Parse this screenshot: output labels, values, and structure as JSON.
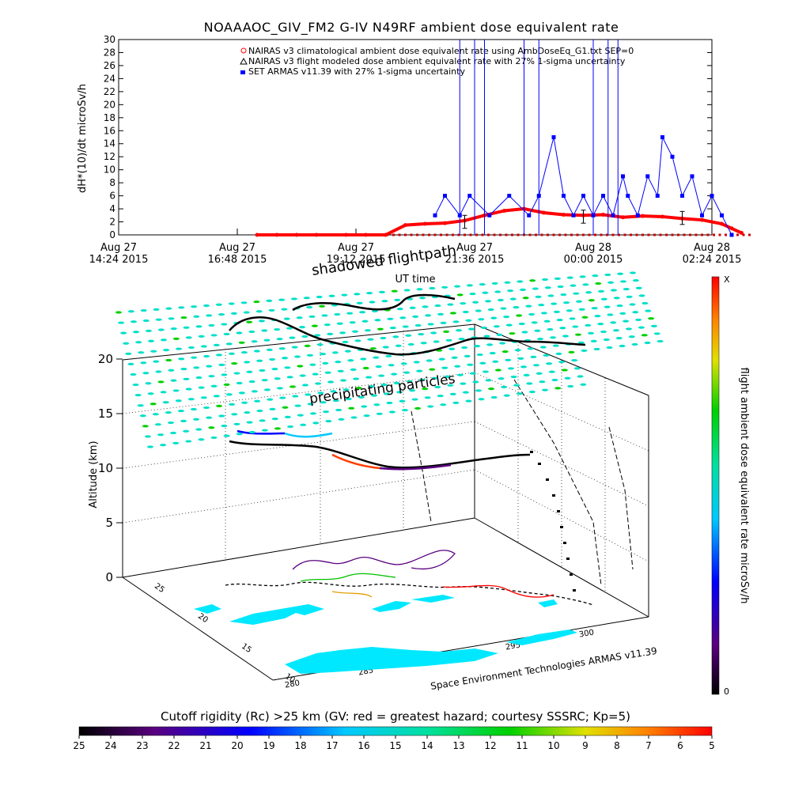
{
  "title": "NOAAAOC_GIV_FM2 G-IV    N49RF   ambient dose equivalent rate",
  "chart_data": [
    {
      "type": "line",
      "ylabel": "dH*(10)/dt microSv/h",
      "xlabel": "UT time",
      "ylim": [
        0,
        30
      ],
      "yticks": [
        "0",
        "2",
        "4",
        "6",
        "8",
        "10",
        "12",
        "14",
        "16",
        "18",
        "20",
        "22",
        "24",
        "26",
        "28",
        "30"
      ],
      "xticks": [
        {
          "l1": "Aug 27",
          "l2": "14:24 2015"
        },
        {
          "l1": "Aug 27",
          "l2": "16:48 2015"
        },
        {
          "l1": "Aug 27",
          "l2": "19:12 2015"
        },
        {
          "l1": "Aug 27",
          "l2": "21:36 2015"
        },
        {
          "l1": "Aug 28",
          "l2": "00:00 2015"
        },
        {
          "l1": "Aug 28",
          "l2": "02:24 2015"
        }
      ],
      "legend": [
        "NAIRAS v3 climatological ambient dose equivalent rate using AmbDoseEq_G1.txt SEP=0",
        "NAIRAS v3 flight modeled dose ambient equivalent rate with 27% 1-sigma uncertainty",
        "SET ARMAS v11.39 with 27% 1-sigma uncertainty"
      ],
      "legend_placement": "top-right",
      "series": [
        {
          "name": "NAIRAS v3 climatological ambient dose equivalent rate using AmbDoseEq_G1.txt SEP=0",
          "color": "#ff0000",
          "x_hours": [
            2.8,
            3.2,
            3.6,
            4.0,
            4.6,
            5.0,
            5.4,
            5.8,
            6.2,
            6.6,
            7.0,
            7.4,
            7.8,
            8.2,
            8.6,
            9.0,
            9.4,
            9.8,
            10.2,
            10.6,
            11.0,
            11.4,
            11.8,
            12.2,
            12.4,
            12.6
          ],
          "values": [
            0,
            0,
            0,
            0,
            0,
            0,
            0,
            1.5,
            1.7,
            1.8,
            2.2,
            3.0,
            3.7,
            4.0,
            3.4,
            3.1,
            3.0,
            3.1,
            2.7,
            2.9,
            2.8,
            2.5,
            2.3,
            1.7,
            1.0,
            0.3
          ]
        },
        {
          "name": "SET ARMAS v11.39 with 27% 1-sigma uncertainty",
          "color": "#0000ff",
          "x_hours": [
            6.4,
            6.6,
            6.9,
            7.1,
            7.5,
            7.9,
            8.3,
            8.5,
            8.8,
            9.0,
            9.2,
            9.4,
            9.6,
            9.8,
            10.0,
            10.2,
            10.3,
            10.5,
            10.7,
            10.9,
            11.0,
            11.2,
            11.4,
            11.6,
            11.8,
            12.0,
            12.2,
            12.4
          ],
          "values": [
            3,
            6,
            3,
            6,
            3,
            6,
            3,
            6,
            15,
            6,
            3,
            6,
            3,
            6,
            3,
            9,
            6,
            3,
            9,
            6,
            15,
            12,
            6,
            9,
            3,
            6,
            3,
            0
          ]
        }
      ],
      "error_bars_hours": [
        7.0,
        9.4,
        11.4
      ],
      "error_bar_values": [
        2.0,
        2.8,
        2.6
      ]
    },
    {
      "type": "scatter",
      "title_labels": [
        "shadowed flightpath",
        "precipitating particles"
      ],
      "ylabel": "Altitude (km)",
      "zticks": [
        "0",
        "5",
        "10",
        "15",
        "20"
      ],
      "lat_ticks": [
        "10",
        "15",
        "20",
        "25"
      ],
      "lon_ticks": [
        "280",
        "285",
        "290",
        "295",
        "300"
      ],
      "credit": "Space Environment Technologies ARMAS v11.39",
      "right_colorbar": {
        "label": "flight ambient dose equivalent rate microSv/h",
        "top": "X",
        "bottom": "0"
      },
      "bottom_colorbar": {
        "label": "Cutoff rigidity (Rc) >25 km (GV: red = greatest hazard; courtesy SSSRC; Kp=5)",
        "ticks": [
          "25",
          "24",
          "23",
          "22",
          "21",
          "20",
          "19",
          "18",
          "17",
          "16",
          "15",
          "14",
          "13",
          "12",
          "11",
          "10",
          "9",
          "8",
          "7",
          "6",
          "5"
        ]
      }
    }
  ]
}
